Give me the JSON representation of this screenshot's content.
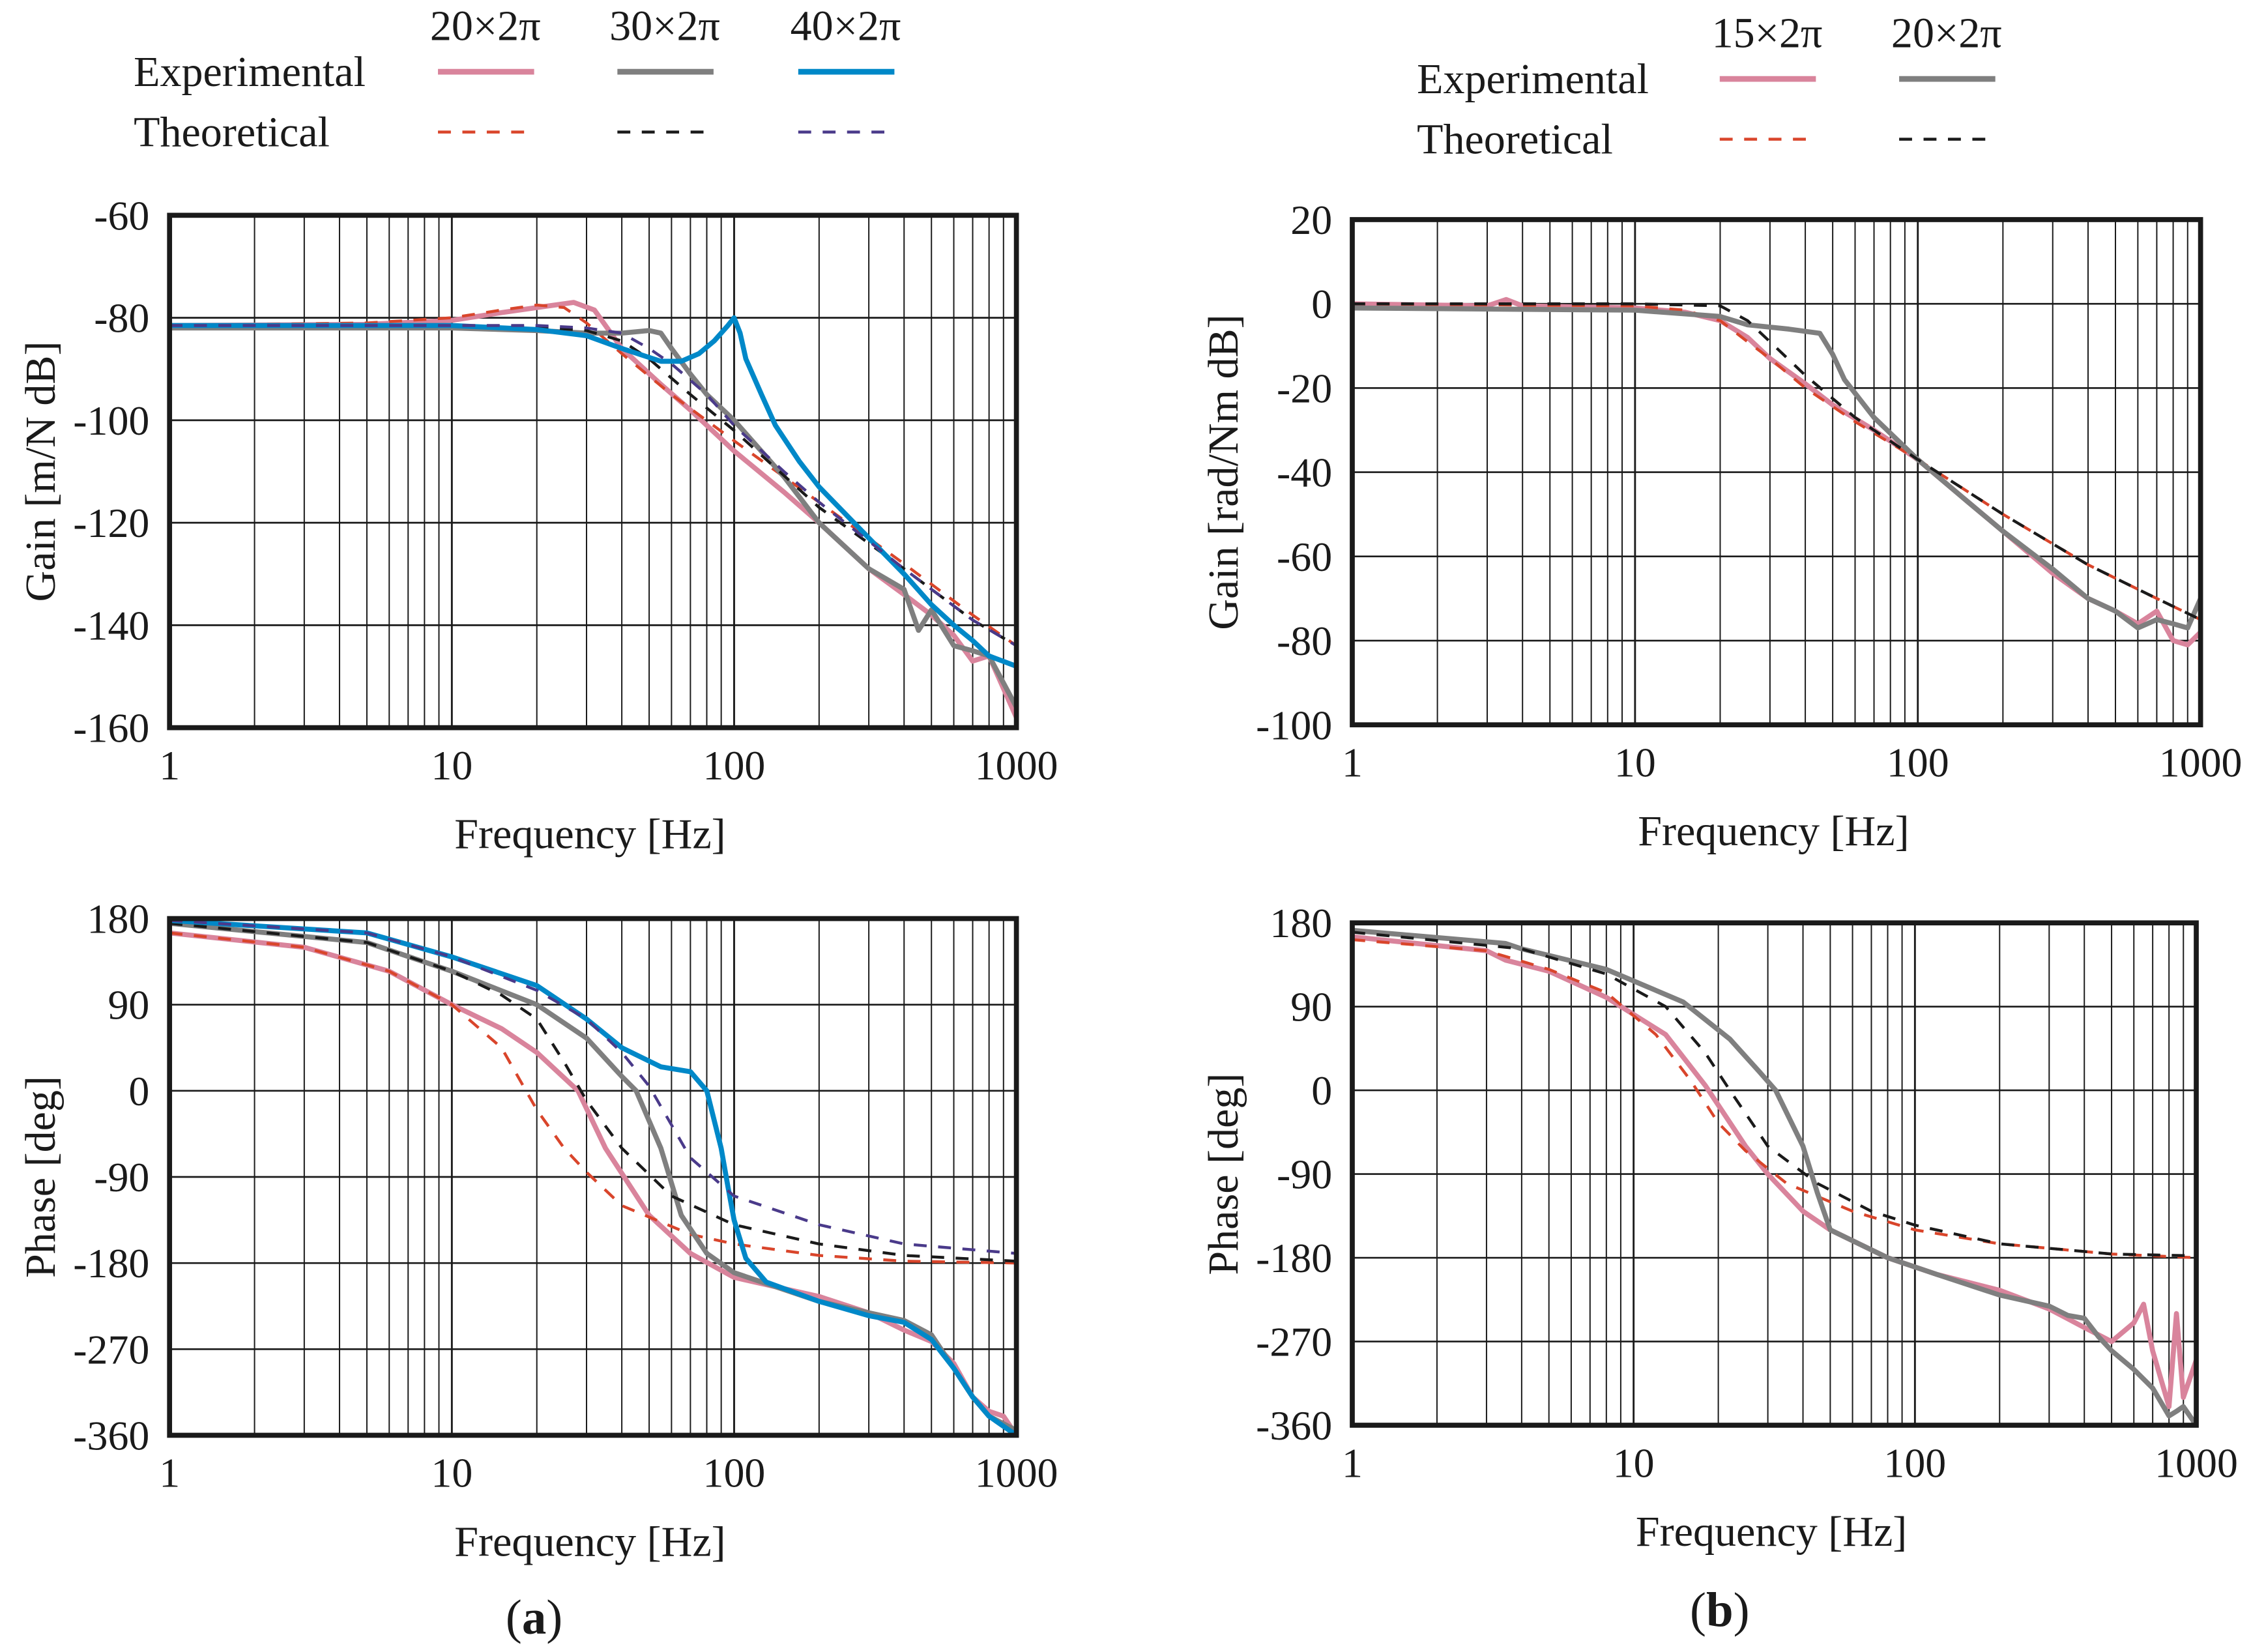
{
  "panels": [
    {
      "label_open": "(",
      "label_letter": "a",
      "label_close": ")"
    },
    {
      "label_open": "(",
      "label_letter": "b",
      "label_close": ")"
    }
  ],
  "legends": [
    {
      "row_labels": [
        "Experimental",
        "Theoretical"
      ],
      "columns": [
        "20×2π",
        "30×2π",
        "40×2π"
      ],
      "experimental_colors": [
        "#d9849c",
        "#7f7f7f",
        "#0088c8"
      ],
      "theoretical_colors": [
        "#d9452b",
        "#1a1a1a",
        "#4a3a8a"
      ]
    },
    {
      "row_labels": [
        "Experimental",
        "Theoretical"
      ],
      "columns": [
        "15×2π",
        "20×2π"
      ],
      "experimental_colors": [
        "#d9849c",
        "#7f7f7f"
      ],
      "theoretical_colors": [
        "#d9452b",
        "#1a1a1a"
      ]
    }
  ],
  "chart_data": [
    {
      "type": "line",
      "panel": "a",
      "xscale": "log",
      "grid": true,
      "xlabel": "Frequency [Hz]",
      "ylabel": "Gain [m/N dB]",
      "xlim": [
        1,
        1000
      ],
      "ylim": [
        -160,
        -60
      ],
      "xticks": [
        "1",
        "10",
        "100",
        "1000"
      ],
      "yticks": [
        "-60",
        "-80",
        "-100",
        "-120",
        "-140",
        "-160"
      ],
      "series": [
        {
          "legend": "Experimental 20×2π",
          "style": "solid",
          "color": "#d9849c",
          "x": [
            1,
            5,
            10,
            15,
            20,
            27,
            32,
            40,
            55,
            70,
            100,
            150,
            200,
            300,
            400,
            500,
            600,
            700,
            800,
            1000
          ],
          "y": [
            -81.5,
            -81.3,
            -80.5,
            -79,
            -78,
            -77,
            -78.5,
            -86,
            -93,
            -98,
            -106,
            -114,
            -120,
            -129,
            -134,
            -138,
            -142,
            -147,
            -146,
            -158
          ]
        },
        {
          "legend": "Theoretical 20×2π",
          "style": "dashed",
          "color": "#d9452b",
          "x": [
            1,
            5,
            10,
            15,
            20,
            25,
            30,
            40,
            60,
            100,
            200,
            400,
            700,
            1000
          ],
          "y": [
            -81.5,
            -81,
            -80,
            -78.5,
            -77.5,
            -78,
            -81,
            -87,
            -95,
            -104,
            -116,
            -128,
            -138,
            -144
          ]
        },
        {
          "legend": "Experimental 30×2π",
          "style": "solid",
          "color": "#7f7f7f",
          "x": [
            1,
            10,
            20,
            30,
            40,
            50,
            55,
            60,
            70,
            80,
            100,
            150,
            200,
            300,
            400,
            450,
            500,
            600,
            700,
            800,
            1000
          ],
          "y": [
            -82,
            -82,
            -82.5,
            -83,
            -83,
            -82.5,
            -83,
            -86,
            -91,
            -95,
            -100,
            -111,
            -120,
            -129,
            -133,
            -141,
            -137,
            -144,
            -145,
            -146,
            -156
          ]
        },
        {
          "legend": "Theoretical 30×2π",
          "style": "dashed",
          "color": "#1a1a1a",
          "x": [
            1,
            10,
            20,
            30,
            40,
            50,
            70,
            100,
            200,
            400,
            700,
            1000
          ],
          "y": [
            -81.5,
            -81.5,
            -81.8,
            -82.5,
            -84.5,
            -88,
            -95,
            -102,
            -117,
            -129,
            -139,
            -144
          ]
        },
        {
          "legend": "Experimental 40×2π",
          "style": "solid",
          "color": "#0088c8",
          "x": [
            1,
            10,
            20,
            30,
            40,
            55,
            65,
            75,
            85,
            95,
            100,
            105,
            110,
            125,
            140,
            170,
            200,
            300,
            400,
            500,
            600,
            700,
            800,
            1000
          ],
          "y": [
            -81.5,
            -81.5,
            -82.3,
            -83.5,
            -86,
            -88.5,
            -88.5,
            -87,
            -84.5,
            -81.5,
            -80,
            -83,
            -88,
            -95,
            -101,
            -108,
            -113,
            -123,
            -130,
            -136,
            -140,
            -143,
            -146,
            -148
          ]
        },
        {
          "legend": "Theoretical 40×2π",
          "style": "dashed",
          "color": "#4a3a8a",
          "x": [
            1,
            10,
            20,
            30,
            40,
            50,
            60,
            80,
            100,
            150,
            200,
            400,
            700,
            1000
          ],
          "y": [
            -81.5,
            -81.5,
            -81.5,
            -82,
            -83,
            -86,
            -89,
            -95,
            -101,
            -110,
            -116,
            -129,
            -139,
            -144
          ]
        }
      ]
    },
    {
      "type": "line",
      "panel": "a",
      "xscale": "log",
      "grid": true,
      "xlabel": "Frequency [Hz]",
      "ylabel": "Phase [deg]",
      "xlim": [
        1,
        1000
      ],
      "ylim": [
        -360,
        180
      ],
      "xticks": [
        "1",
        "10",
        "100",
        "1000"
      ],
      "yticks": [
        "180",
        "90",
        "0",
        "-90",
        "-180",
        "-270",
        "-360"
      ],
      "series": [
        {
          "legend": "Experimental 20×2π",
          "style": "solid",
          "color": "#d9849c",
          "x": [
            1,
            3,
            6,
            10,
            15,
            20,
            28,
            35,
            50,
            70,
            100,
            200,
            300,
            400,
            500,
            600,
            700,
            800,
            900,
            1000
          ],
          "y": [
            165,
            150,
            125,
            90,
            65,
            40,
            0,
            -60,
            -130,
            -170,
            -195,
            -215,
            -232,
            -250,
            -262,
            -285,
            -320,
            -335,
            -340,
            -360
          ]
        },
        {
          "legend": "Theoretical 20×2π",
          "style": "dashed",
          "color": "#d9452b",
          "x": [
            1,
            3,
            6,
            10,
            15,
            20,
            25,
            30,
            40,
            70,
            100,
            200,
            400,
            1000
          ],
          "y": [
            165,
            150,
            125,
            90,
            45,
            -20,
            -60,
            -85,
            -120,
            -150,
            -160,
            -172,
            -178,
            -180
          ]
        },
        {
          "legend": "Experimental 30×2π",
          "style": "solid",
          "color": "#7f7f7f",
          "x": [
            1,
            5,
            10,
            20,
            30,
            40,
            45,
            55,
            65,
            80,
            100,
            120,
            200,
            300,
            400,
            500,
            600,
            700,
            800,
            1000
          ],
          "y": [
            175,
            155,
            125,
            90,
            55,
            15,
            0,
            -60,
            -130,
            -170,
            -190,
            -198,
            -220,
            -232,
            -240,
            -255,
            -290,
            -320,
            -340,
            -355
          ]
        },
        {
          "legend": "Theoretical 30×2π",
          "style": "dashed",
          "color": "#1a1a1a",
          "x": [
            1,
            5,
            10,
            15,
            20,
            25,
            30,
            40,
            60,
            100,
            200,
            400,
            1000
          ],
          "y": [
            175,
            155,
            125,
            100,
            75,
            30,
            -10,
            -60,
            -110,
            -140,
            -160,
            -172,
            -178
          ]
        },
        {
          "legend": "Experimental 40×2π",
          "style": "solid",
          "color": "#0088c8",
          "x": [
            1,
            5,
            10,
            20,
            30,
            40,
            55,
            70,
            80,
            90,
            95,
            100,
            110,
            130,
            200,
            300,
            400,
            500,
            600,
            700,
            800,
            1000
          ],
          "y": [
            178,
            165,
            140,
            110,
            75,
            45,
            25,
            20,
            0,
            -60,
            -100,
            -135,
            -175,
            -200,
            -220,
            -235,
            -242,
            -260,
            -290,
            -320,
            -340,
            -360
          ]
        },
        {
          "legend": "Theoretical 40×2π",
          "style": "dashed",
          "color": "#4a3a8a",
          "x": [
            1,
            5,
            10,
            20,
            30,
            40,
            50,
            70,
            100,
            200,
            400,
            1000
          ],
          "y": [
            178,
            165,
            140,
            105,
            75,
            40,
            5,
            -70,
            -110,
            -140,
            -160,
            -170
          ]
        }
      ]
    },
    {
      "type": "line",
      "panel": "b",
      "xscale": "log",
      "grid": true,
      "xlabel": "Frequency [Hz]",
      "ylabel": "Gain [rad/Nm dB]",
      "xlim": [
        1,
        1000
      ],
      "ylim": [
        -100,
        20
      ],
      "xticks": [
        "1",
        "10",
        "100",
        "1000"
      ],
      "yticks": [
        "20",
        "0",
        "-20",
        "-40",
        "-60",
        "-80",
        "-100"
      ],
      "series": [
        {
          "legend": "Experimental 15×2π",
          "style": "solid",
          "color": "#d9849c",
          "x": [
            1,
            3,
            3.5,
            4,
            10,
            15,
            20,
            25,
            30,
            40,
            50,
            70,
            100,
            150,
            200,
            300,
            400,
            500,
            600,
            700,
            800,
            900,
            1000
          ],
          "y": [
            0,
            -0.5,
            1,
            -0.5,
            -1,
            -2,
            -4,
            -8,
            -13,
            -19,
            -24,
            -30,
            -37,
            -47,
            -54,
            -64,
            -70,
            -73,
            -76,
            -73,
            -80,
            -81,
            -78
          ]
        },
        {
          "legend": "Theoretical 15×2π",
          "style": "dashed",
          "color": "#d9452b",
          "x": [
            1,
            10,
            15,
            20,
            25,
            30,
            40,
            60,
            100,
            200,
            400,
            700,
            1000
          ],
          "y": [
            0,
            -0.5,
            -1.5,
            -4,
            -9,
            -13,
            -20,
            -28,
            -37,
            -50,
            -62,
            -70,
            -75
          ]
        },
        {
          "legend": "Experimental 20×2π",
          "style": "solid",
          "color": "#7f7f7f",
          "x": [
            1,
            10,
            20,
            25,
            35,
            45,
            50,
            55,
            70,
            100,
            150,
            200,
            300,
            400,
            500,
            600,
            700,
            800,
            900,
            1000
          ],
          "y": [
            -1,
            -1.5,
            -3,
            -5,
            -6,
            -7,
            -12,
            -18,
            -27,
            -37,
            -47,
            -54,
            -63,
            -70,
            -73,
            -77,
            -75,
            -76,
            -77,
            -70
          ]
        },
        {
          "legend": "Theoretical 20×2π",
          "style": "dashed",
          "color": "#1a1a1a",
          "x": [
            1,
            10,
            20,
            25,
            30,
            40,
            60,
            100,
            200,
            400,
            700,
            1000
          ],
          "y": [
            0,
            0,
            -0.5,
            -4,
            -9,
            -17,
            -27,
            -37,
            -50,
            -62,
            -70,
            -75
          ]
        }
      ]
    },
    {
      "type": "line",
      "panel": "b",
      "xscale": "log",
      "grid": true,
      "xlabel": "Frequency [Hz]",
      "ylabel": "Phase [deg]",
      "xlim": [
        1,
        1000
      ],
      "ylim": [
        -360,
        180
      ],
      "xticks": [
        "1",
        "10",
        "100",
        "1000"
      ],
      "yticks": [
        "180",
        "90",
        "0",
        "-90",
        "-180",
        "-270",
        "-360"
      ],
      "series": [
        {
          "legend": "Experimental 15×2π",
          "style": "solid",
          "color": "#d9849c",
          "x": [
            1,
            3,
            3.5,
            5,
            8,
            13,
            18,
            25,
            30,
            40,
            50,
            80,
            120,
            200,
            300,
            400,
            500,
            600,
            650,
            700,
            800,
            850,
            900,
            1000
          ],
          "y": [
            165,
            150,
            140,
            128,
            100,
            60,
            5,
            -60,
            -90,
            -130,
            -150,
            -180,
            -198,
            -215,
            -235,
            -255,
            -270,
            -250,
            -230,
            -280,
            -340,
            -240,
            -330,
            -290
          ]
        },
        {
          "legend": "Theoretical 15×2π",
          "style": "dashed",
          "color": "#d9452b",
          "x": [
            1,
            3,
            5,
            8,
            12,
            16,
            20,
            25,
            35,
            60,
            100,
            200,
            500,
            1000
          ],
          "y": [
            162,
            150,
            130,
            105,
            60,
            10,
            -35,
            -65,
            -100,
            -130,
            -150,
            -165,
            -176,
            -180
          ]
        },
        {
          "legend": "Experimental 20×2π",
          "style": "solid",
          "color": "#7f7f7f",
          "x": [
            1,
            3.5,
            4,
            8,
            15,
            22,
            28,
            32,
            40,
            45,
            50,
            80,
            120,
            200,
            300,
            350,
            400,
            450,
            500,
            600,
            700,
            800,
            850,
            900,
            1000
          ],
          "y": [
            172,
            158,
            152,
            130,
            95,
            55,
            20,
            0,
            -60,
            -110,
            -150,
            -180,
            -198,
            -220,
            -232,
            -242,
            -245,
            -265,
            -280,
            -300,
            -320,
            -350,
            -345,
            -340,
            -365
          ]
        },
        {
          "legend": "Theoretical 20×2π",
          "style": "dashed",
          "color": "#1a1a1a",
          "x": [
            1,
            4,
            8,
            13,
            18,
            22,
            30,
            45,
            70,
            100,
            200,
            500,
            1000
          ],
          "y": [
            170,
            152,
            125,
            90,
            40,
            0,
            -60,
            -100,
            -130,
            -145,
            -165,
            -176,
            -178
          ]
        }
      ]
    }
  ]
}
